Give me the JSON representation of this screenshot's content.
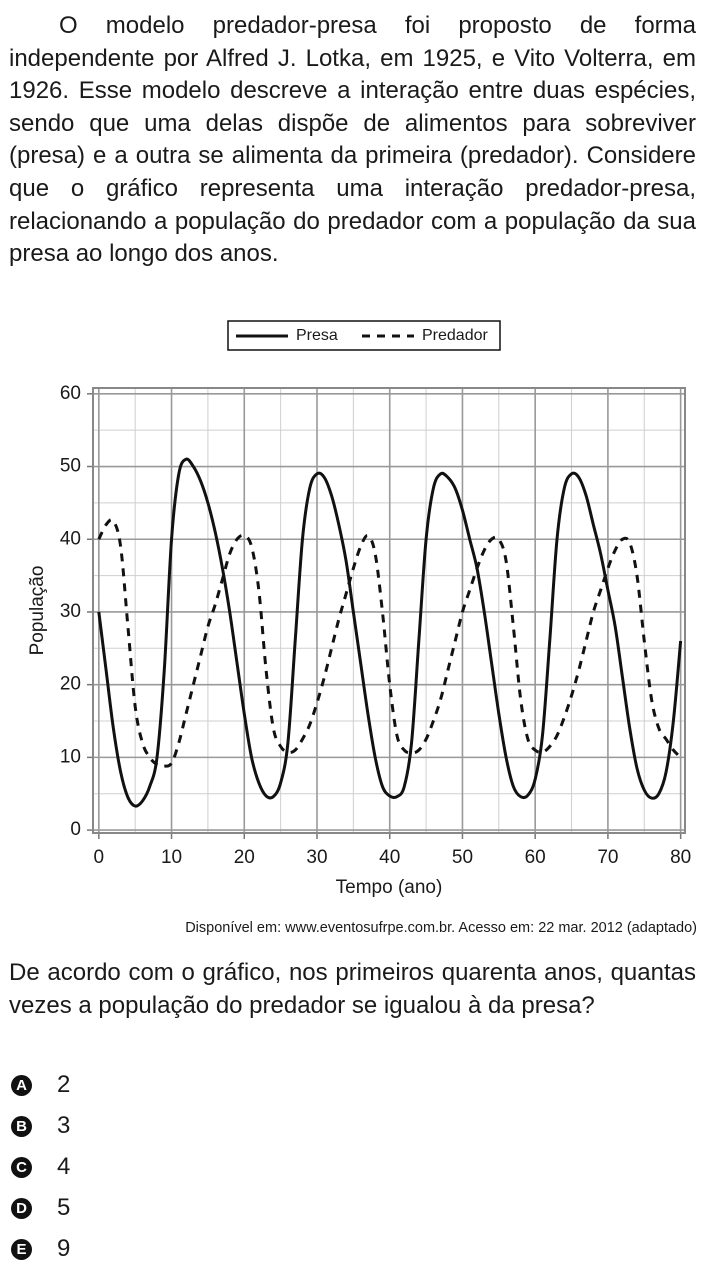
{
  "intro": "O modelo predador-presa foi proposto de forma independente por Alfred J. Lotka, em 1925, e Vito Volterra, em 1926. Esse modelo descreve a interação entre duas espécies, sendo que uma delas dispõe de alimentos para sobreviver (presa) e a outra se alimenta da primeira (predador). Considere que o gráfico representa uma interação predador-presa, relacionando a população do predador com a população da sua presa ao longo dos anos.",
  "chart_data": {
    "type": "line",
    "x_label": "Tempo (ano)",
    "y_label": "População",
    "x": [
      0,
      1,
      2,
      3,
      4,
      5,
      6,
      7,
      8,
      9,
      10,
      11,
      12,
      13,
      14,
      15,
      16,
      17,
      18,
      19,
      20,
      21,
      22,
      23,
      24,
      25,
      26,
      27,
      28,
      29,
      30,
      31,
      32,
      33,
      34,
      35,
      36,
      37,
      38,
      39,
      40,
      41,
      42,
      43,
      44,
      45,
      46,
      47,
      48,
      49,
      50,
      51,
      52,
      53,
      54,
      55,
      56,
      57,
      58,
      59,
      60,
      61,
      62,
      63,
      64,
      65,
      66,
      67,
      68,
      69,
      70,
      71,
      72,
      73,
      74,
      75,
      76,
      77,
      78,
      79,
      80
    ],
    "series": [
      {
        "name": "Presa",
        "color": "#111111",
        "dash": "solid",
        "values": [
          30,
          22,
          14,
          8,
          4.5,
          3.3,
          4,
          6,
          10,
          22,
          40,
          49,
          51,
          50,
          48,
          45,
          41,
          36,
          30,
          23,
          16,
          10,
          6.5,
          4.7,
          4.6,
          6.5,
          12,
          26,
          40,
          47,
          49,
          48.5,
          46,
          42,
          37,
          30,
          23,
          16,
          10,
          6,
          4.7,
          4.6,
          6,
          12,
          26,
          40,
          47,
          49,
          48.5,
          47,
          44,
          40,
          36,
          30,
          23,
          16,
          10,
          6,
          4.6,
          4.8,
          7,
          13,
          26,
          40,
          47,
          49,
          48.5,
          46,
          42,
          38,
          33,
          28,
          21,
          14,
          8.5,
          5.5,
          4.4,
          5,
          8,
          15,
          26
        ]
      },
      {
        "name": "Predador",
        "color": "#111111",
        "dash": "dashed",
        "values": [
          40,
          42,
          42.5,
          39,
          28,
          17,
          12,
          10,
          9,
          8.8,
          9.2,
          12,
          16,
          20,
          24,
          28,
          31,
          34.5,
          38,
          40,
          40.5,
          39,
          33,
          22,
          14,
          11.5,
          10.7,
          11,
          12.5,
          14.5,
          17.5,
          21,
          25,
          29,
          32.5,
          36,
          39,
          40.5,
          38,
          30,
          20,
          13,
          11,
          10.6,
          11,
          12.5,
          15,
          18,
          22,
          26,
          30,
          33,
          36,
          38.5,
          40,
          40,
          37,
          28,
          18,
          12.5,
          11,
          10.7,
          11.5,
          13,
          15.5,
          18.5,
          22,
          26,
          30,
          33,
          36,
          38.5,
          40,
          39.5,
          35,
          26,
          18,
          14,
          12.5,
          11,
          10
        ]
      }
    ],
    "xlim": [
      -0.8,
      80.6
    ],
    "ylim": [
      -0.4,
      60.8
    ],
    "xticks": [
      0,
      10,
      20,
      30,
      40,
      50,
      60,
      70,
      80
    ],
    "yticks": [
      0,
      10,
      20,
      30,
      40,
      50,
      60
    ],
    "xminorticks": [
      5,
      15,
      25,
      35,
      45,
      55,
      65,
      75
    ],
    "yminorticks": [
      5,
      15,
      25,
      35,
      45,
      55
    ],
    "grid": true,
    "legend": "top"
  },
  "source": "Disponível em: www.eventosufrpe.com.br. Acesso em: 22 mar. 2012 (adaptado)",
  "question": "De acordo com o gráfico, nos primeiros quarenta anos, quantas vezes a população do predador se igualou à da presa?",
  "options": [
    {
      "letter": "A",
      "text": "2"
    },
    {
      "letter": "B",
      "text": "3"
    },
    {
      "letter": "C",
      "text": "4"
    },
    {
      "letter": "D",
      "text": "5"
    },
    {
      "letter": "E",
      "text": "9"
    }
  ]
}
